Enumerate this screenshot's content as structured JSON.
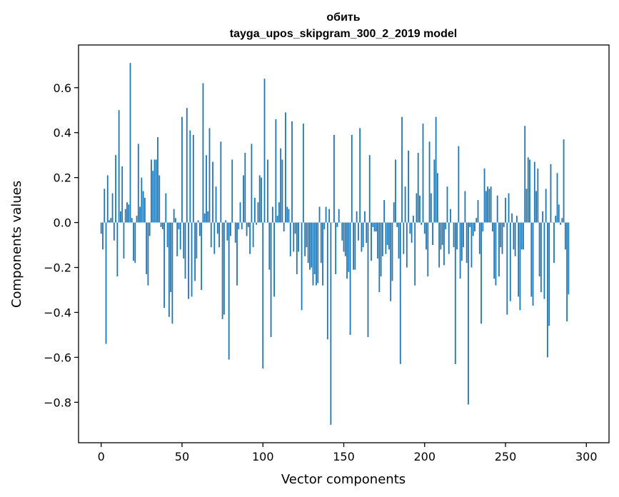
{
  "chart_data": {
    "type": "bar",
    "title": "обить",
    "subtitle": "tayga_upos_skipgram_300_2_2019 model",
    "xlabel": "Vector components",
    "ylabel": "Components values",
    "xlim": [
      -14,
      314
    ],
    "ylim": [
      -0.98,
      0.79
    ],
    "xticks": [
      0,
      50,
      100,
      150,
      200,
      250,
      300
    ],
    "xtick_labels": [
      "0",
      "50",
      "100",
      "150",
      "200",
      "250",
      "300"
    ],
    "yticks": [
      -0.8,
      -0.6,
      -0.4,
      -0.2,
      0.0,
      0.2,
      0.4,
      0.6
    ],
    "ytick_labels": [
      "−0.8",
      "−0.6",
      "−0.4",
      "−0.2",
      "0.0",
      "0.2",
      "0.4",
      "0.6"
    ],
    "color": "#1f77b4",
    "values": [
      -0.05,
      -0.12,
      0.15,
      -0.54,
      0.21,
      0.01,
      0.02,
      0.13,
      -0.08,
      0.3,
      -0.24,
      0.5,
      0.05,
      0.25,
      -0.16,
      0.06,
      0.09,
      0.08,
      0.71,
      0.02,
      -0.17,
      -0.18,
      0.03,
      0.35,
      0.07,
      0.2,
      0.14,
      0.11,
      -0.23,
      -0.28,
      -0.06,
      0.28,
      0.23,
      0.28,
      0.28,
      0.38,
      0.21,
      -0.02,
      -0.03,
      -0.38,
      0.13,
      -0.11,
      -0.42,
      -0.31,
      -0.45,
      0.06,
      0.02,
      -0.15,
      -0.03,
      -0.12,
      0.47,
      -0.16,
      -0.25,
      0.51,
      -0.34,
      0.41,
      -0.33,
      0.39,
      -0.26,
      -0.16,
      0.01,
      -0.06,
      -0.3,
      0.62,
      0.04,
      0.3,
      0.05,
      0.42,
      -0.11,
      0.27,
      -0.14,
      0.16,
      -0.05,
      -0.11,
      0.36,
      -0.43,
      -0.41,
      0.01,
      -0.08,
      -0.61,
      -0.06,
      0.28,
      0.0,
      -0.09,
      -0.28,
      -0.03,
      0.09,
      -0.03,
      0.21,
      0.31,
      -0.06,
      -0.02,
      -0.14,
      0.35,
      -0.11,
      0.11,
      -0.01,
      0.09,
      0.21,
      0.2,
      -0.65,
      0.64,
      0.0,
      0.28,
      -0.21,
      -0.51,
      0.07,
      -0.33,
      0.46,
      0.03,
      0.09,
      0.33,
      0.28,
      -0.04,
      0.49,
      0.07,
      0.06,
      -0.15,
      0.45,
      -0.13,
      -0.05,
      -0.23,
      -0.13,
      0.0,
      -0.39,
      0.44,
      -0.15,
      -0.11,
      -0.18,
      -0.21,
      -0.2,
      -0.28,
      -0.23,
      -0.28,
      -0.27,
      0.07,
      -0.18,
      -0.28,
      -0.03,
      0.07,
      -0.52,
      0.06,
      -0.9,
      0.0,
      0.39,
      -0.23,
      -0.02,
      0.06,
      0.0,
      -0.08,
      -0.13,
      -0.15,
      -0.25,
      -0.22,
      -0.5,
      0.39,
      -0.21,
      -0.21,
      0.05,
      -0.08,
      0.42,
      -0.13,
      -0.11,
      0.05,
      -0.09,
      -0.51,
      0.3,
      -0.17,
      -0.02,
      -0.04,
      -0.04,
      -0.16,
      -0.31,
      -0.24,
      -0.15,
      0.1,
      -0.14,
      -0.1,
      -0.12,
      -0.35,
      -0.26,
      0.09,
      0.28,
      -0.02,
      -0.16,
      -0.63,
      0.47,
      -0.14,
      0.16,
      -0.2,
      0.32,
      -0.05,
      -0.09,
      0.03,
      -0.28,
      0.13,
      0.31,
      0.12,
      -0.01,
      0.44,
      -0.05,
      -0.12,
      -0.24,
      0.36,
      0.13,
      -0.1,
      0.28,
      0.47,
      0.22,
      -0.2,
      -0.12,
      -0.1,
      -0.19,
      -0.03,
      0.16,
      -0.14,
      0.06,
      0.0,
      -0.11,
      -0.63,
      -0.12,
      0.34,
      -0.25,
      -0.17,
      -0.11,
      0.14,
      -0.18,
      -0.81,
      -0.02,
      -0.2,
      -0.06,
      -0.04,
      0.02,
      0.1,
      -0.14,
      -0.45,
      -0.04,
      0.24,
      0.14,
      0.16,
      0.15,
      0.16,
      -0.04,
      -0.25,
      -0.28,
      0.12,
      -0.24,
      -0.11,
      -0.14,
      -0.02,
      0.11,
      -0.41,
      0.13,
      -0.35,
      0.04,
      -0.12,
      -0.15,
      0.03,
      -0.33,
      -0.39,
      -0.12,
      -0.12,
      0.43,
      0.15,
      0.29,
      0.28,
      -0.33,
      -0.37,
      0.27,
      0.14,
      0.24,
      -0.24,
      -0.31,
      0.05,
      -0.34,
      0.15,
      -0.6,
      -0.46,
      0.26,
      0.0,
      -0.18,
      0.03,
      0.22,
      0.08,
      -0.01,
      0.02,
      0.37,
      -0.12,
      -0.44,
      -0.32
    ]
  }
}
